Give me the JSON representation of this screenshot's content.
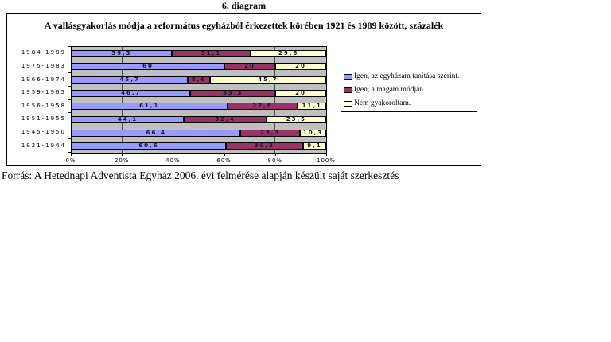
{
  "page": {
    "heading": "6. diagram",
    "source": "Forrás: A Hetednapi Adventista Egyház 2006. évi felmérése alapján készült saját szerkesztés"
  },
  "chart_data": {
    "type": "bar",
    "orientation": "horizontal-stacked",
    "title": "A vallásgyakorlás módja a református egyházból érkezettek körében 1921 és 1989 között, százalék",
    "categories": [
      "1984-1989",
      "1975-1983",
      "1966-1974",
      "1959-1965",
      "1956-1958",
      "1951-1955",
      "1945-1950",
      "1921-1944"
    ],
    "series": [
      {
        "name": "Igen, az egyházam tanítása szerint.",
        "color": "#9999FF",
        "values": [
          39.3,
          60,
          45.7,
          46.7,
          61.1,
          44.1,
          66.4,
          60.6
        ]
      },
      {
        "name": "Igen, a magam módján.",
        "color": "#993366",
        "values": [
          31.1,
          20,
          8.6,
          33.3,
          27.8,
          32.4,
          23.3,
          30.3
        ]
      },
      {
        "name": "Nem gyakoroltam.",
        "color": "#FFFFCC",
        "values": [
          29.6,
          20,
          45.7,
          20,
          11.1,
          23.5,
          10.3,
          9.1
        ]
      }
    ],
    "x_ticks": [
      "0%",
      "20%",
      "40%",
      "60%",
      "80%",
      "100%"
    ],
    "xlim": [
      0,
      100
    ],
    "grid": true,
    "plot_background": "#C0C0C0",
    "legend_position": "right",
    "decimal_separator": ","
  }
}
